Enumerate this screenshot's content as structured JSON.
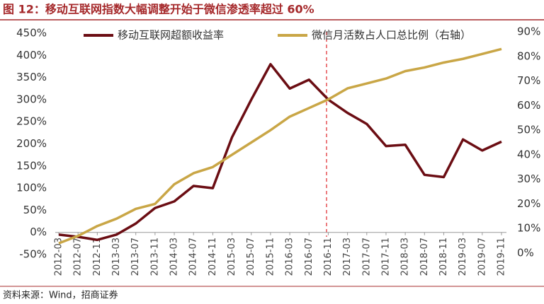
{
  "chart_data": {
    "type": "line",
    "title": "图 12：移动互联网指数大幅调整开始于微信渗透率超过 60%",
    "source": "资料来源：Wind，招商证券",
    "categories": [
      "2012-03",
      "2012-07",
      "2012-11",
      "2013-03",
      "2013-07",
      "2013-11",
      "2014-03",
      "2014-07",
      "2014-11",
      "2015-03",
      "2015-07",
      "2015-11",
      "2016-03",
      "2016-07",
      "2016-11",
      "2017-03",
      "2017-07",
      "2017-11",
      "2018-03",
      "2018-07",
      "2018-11",
      "2019-03",
      "2019-07",
      "2019-11"
    ],
    "series": [
      {
        "name": "移动互联网超额收益率",
        "color": "#6b0d13",
        "axis": "y",
        "values": [
          -5,
          -10,
          -17,
          -5,
          20,
          55,
          70,
          105,
          100,
          215,
          300,
          380,
          325,
          345,
          300,
          270,
          245,
          195,
          198,
          130,
          125,
          210,
          185,
          205
        ]
      },
      {
        "name": "微信月活数占人口总比例（右轴）",
        "color": "#c9a646",
        "axis": "y2",
        "values": [
          4,
          7,
          11,
          14,
          18,
          20,
          28,
          32.5,
          35,
          40,
          45,
          50,
          55.5,
          59,
          62.5,
          67,
          69,
          71,
          74,
          75.5,
          77.5,
          79,
          81,
          83
        ]
      }
    ],
    "ylim": [
      -50,
      450
    ],
    "yticks": [
      {
        "value": -50,
        "label": "-50%"
      },
      {
        "value": 0,
        "label": "0%"
      },
      {
        "value": 50,
        "label": "50%"
      },
      {
        "value": 100,
        "label": "100%"
      },
      {
        "value": 150,
        "label": "150%"
      },
      {
        "value": 200,
        "label": "200%"
      },
      {
        "value": 250,
        "label": "250%"
      },
      {
        "value": 300,
        "label": "300%"
      },
      {
        "value": 350,
        "label": "350%"
      },
      {
        "value": 400,
        "label": "400%"
      },
      {
        "value": 450,
        "label": "450%"
      }
    ],
    "y2lim": [
      0,
      90
    ],
    "y2ticks": [
      {
        "value": 0,
        "label": "0%"
      },
      {
        "value": 10,
        "label": "10%"
      },
      {
        "value": 20,
        "label": "20%"
      },
      {
        "value": 30,
        "label": "30%"
      },
      {
        "value": 40,
        "label": "40%"
      },
      {
        "value": 50,
        "label": "50%"
      },
      {
        "value": 60,
        "label": "60%"
      },
      {
        "value": 70,
        "label": "70%"
      },
      {
        "value": 80,
        "label": "80%"
      },
      {
        "value": 90,
        "label": "90%"
      }
    ],
    "legend": "top"
  }
}
